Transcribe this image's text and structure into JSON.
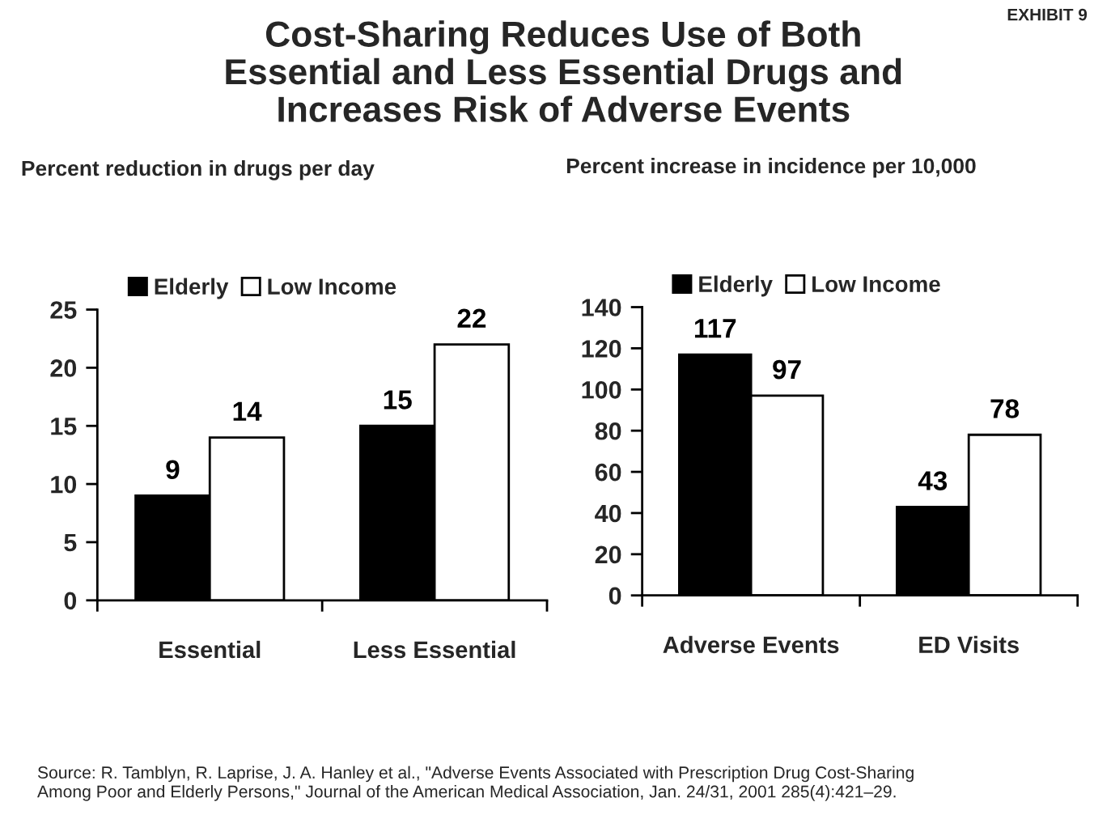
{
  "chart_data": [
    {
      "type": "bar",
      "title": "Cost-Sharing Reduces Use of Both\nEssential and Less Essential Drugs and\nIncreases Risk of Adverse Events",
      "subtitle": "Percent reduction in drugs per day",
      "categories": [
        "Essential",
        "Less Essential"
      ],
      "series": [
        {
          "name": "Elderly",
          "color": "#000000",
          "values": [
            9,
            15
          ]
        },
        {
          "name": "Low Income",
          "color": "#ffffff",
          "values": [
            14,
            22
          ]
        }
      ],
      "ylim": [
        0,
        25
      ],
      "yticks": [
        0,
        5,
        10,
        15,
        20,
        25
      ],
      "data_labels": true,
      "legend": "top",
      "annotations": [
        "EXHIBIT 9",
        "Source: R. Tamblyn, R. Laprise, J. A. Hanley et al., \"Adverse Events Associated with Prescription Drug Cost-Sharing\nAmong Poor and Elderly Persons,\" Journal of the American Medical Association, Jan. 24/31, 2001 285(4):421–29."
      ]
    },
    {
      "type": "bar",
      "subtitle": "Percent increase in incidence per 10,000",
      "categories": [
        "Adverse Events",
        "ED Visits"
      ],
      "series": [
        {
          "name": "Elderly",
          "color": "#000000",
          "values": [
            117,
            43
          ]
        },
        {
          "name": "Low Income",
          "color": "#ffffff",
          "values": [
            97,
            78
          ]
        }
      ],
      "ylim": [
        0,
        140
      ],
      "yticks": [
        0,
        20,
        40,
        60,
        80,
        100,
        120,
        140
      ],
      "data_labels": true,
      "legend": "top"
    }
  ]
}
